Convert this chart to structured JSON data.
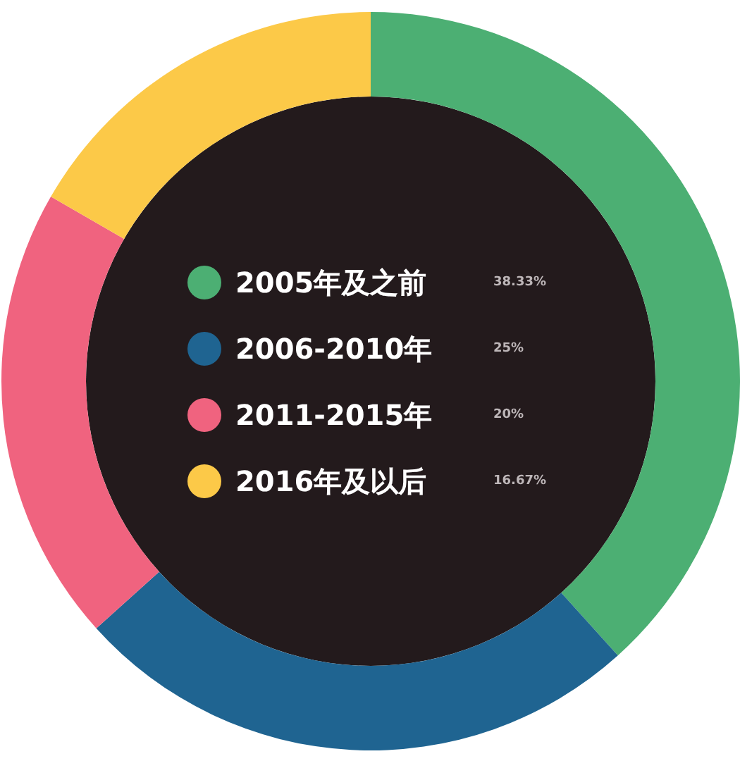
{
  "chart_data": {
    "type": "donut",
    "categories": [
      "2005年及之前",
      "2006-2010年",
      "2011-2015年",
      "2016年及以后"
    ],
    "values": [
      38.33,
      25,
      20,
      16.67
    ],
    "colors": [
      "#4caf73",
      "#1f6491",
      "#f0637f",
      "#fcc948"
    ],
    "value_labels": [
      "38.33%",
      "25%",
      "20%",
      "16.67%"
    ],
    "legend": "center"
  }
}
